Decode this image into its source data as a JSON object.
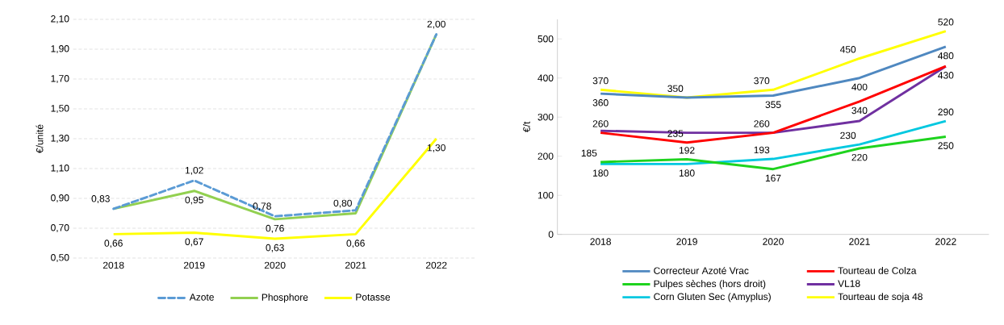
{
  "chart_data": [
    {
      "type": "line",
      "ylabel": "€/unité",
      "categories": [
        "2018",
        "2019",
        "2020",
        "2021",
        "2022"
      ],
      "ylim": [
        0.5,
        2.1
      ],
      "yticks": [
        {
          "value": 0.5,
          "label": "0,50"
        },
        {
          "value": 0.7,
          "label": "0,70"
        },
        {
          "value": 0.9,
          "label": "0,90"
        },
        {
          "value": 1.1,
          "label": "1,10"
        },
        {
          "value": 1.3,
          "label": "1,30"
        },
        {
          "value": 1.5,
          "label": "1,50"
        },
        {
          "value": 1.7,
          "label": "1,70"
        },
        {
          "value": 1.9,
          "label": "1,90"
        },
        {
          "value": 2.1,
          "label": "2,10"
        }
      ],
      "grid": "y",
      "legend": "bottom",
      "marker": "none",
      "series": [
        {
          "name": "Azote",
          "color": "#5b9bd5",
          "line_style": "dashed",
          "values": [
            0.83,
            1.02,
            0.78,
            0.82,
            2.0
          ],
          "value_labels": [
            "0,83",
            "1,02",
            "0,78",
            null,
            "2,00"
          ]
        },
        {
          "name": "Phosphore",
          "color": "#92d050",
          "values": [
            0.83,
            0.95,
            0.76,
            0.8,
            2.0
          ],
          "value_labels": [
            null,
            "0,95",
            "0,76",
            "0,80",
            null
          ]
        },
        {
          "name": "Potasse",
          "color": "#ffff00",
          "values": [
            0.66,
            0.67,
            0.63,
            0.66,
            1.3
          ],
          "value_labels": [
            "0,66",
            "0,67",
            "0,63",
            "0,66",
            "1,30"
          ]
        }
      ]
    },
    {
      "type": "line",
      "ylabel": "€/t",
      "categories": [
        "2018",
        "2019",
        "2020",
        "2021",
        "2022"
      ],
      "ylim": [
        0,
        550
      ],
      "yticks": [
        0,
        100,
        200,
        300,
        400,
        500
      ],
      "grid": false,
      "legend": "bottom",
      "marker": "none",
      "series": [
        {
          "name": "Correcteur Azoté Vrac",
          "color": "#4f88c0",
          "values": [
            360,
            350,
            355,
            400,
            480
          ],
          "value_labels": [
            "360",
            null,
            "355",
            "400",
            "480"
          ]
        },
        {
          "name": "Tourteau de Colza",
          "color": "#ff0000",
          "values": [
            260,
            235,
            260,
            340,
            430
          ],
          "value_labels": [
            "260",
            "235",
            "260",
            "340",
            "430"
          ]
        },
        {
          "name": "Pulpes sèches (hors droit)",
          "color": "#1ed31e",
          "values": [
            185,
            192,
            167,
            220,
            250
          ],
          "value_labels": [
            "185",
            "192",
            "167",
            "220",
            "250"
          ]
        },
        {
          "name": "VL18",
          "color": "#7030a0",
          "values": [
            265,
            260,
            260,
            290,
            430
          ]
        },
        {
          "name": "Corn Gluten Sec (Amyplus)",
          "color": "#00c8e0",
          "values": [
            180,
            180,
            193,
            230,
            290
          ],
          "value_labels": [
            "180",
            "180",
            "193",
            "230",
            "290"
          ]
        },
        {
          "name": "Tourteau de soja 48",
          "color": "#ffff00",
          "values": [
            370,
            350,
            370,
            450,
            520
          ],
          "value_labels": [
            "370",
            "350",
            "370",
            "450",
            "520"
          ]
        }
      ]
    }
  ]
}
